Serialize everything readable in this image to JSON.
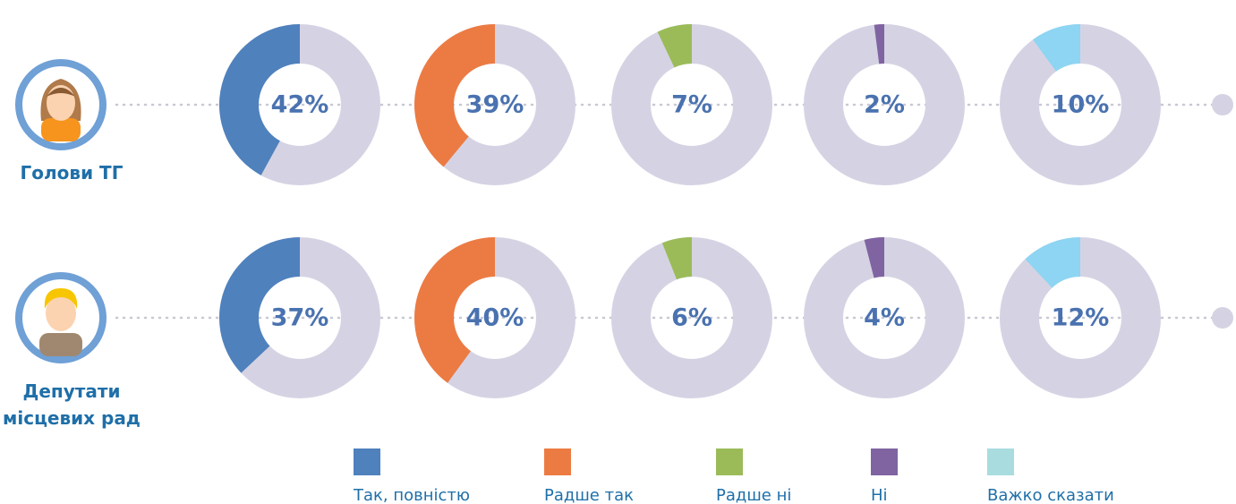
{
  "chart_data": {
    "type": "donut",
    "categories": [
      "Так, повністю",
      "Радше так",
      "Радше ні",
      "Ні",
      "Важко сказати"
    ],
    "colors": [
      "#4f81bd",
      "#ec7b43",
      "#9bbb59",
      "#8064a2",
      "#8dd5f2"
    ],
    "legend_colors": [
      "#4f81bd",
      "#ec7b43",
      "#9bbb59",
      "#8064a2",
      "#a9dcdf"
    ],
    "series": [
      {
        "name": "Голови ТГ",
        "values": [
          42,
          39,
          7,
          2,
          10
        ],
        "value_labels": [
          "42%",
          "39%",
          "7%",
          "2%",
          "10%"
        ]
      },
      {
        "name": "Депутати місцевих рад",
        "values": [
          37,
          40,
          6,
          4,
          12
        ],
        "value_labels": [
          "37%",
          "40%",
          "6%",
          "4%",
          "12%"
        ]
      }
    ]
  }
}
